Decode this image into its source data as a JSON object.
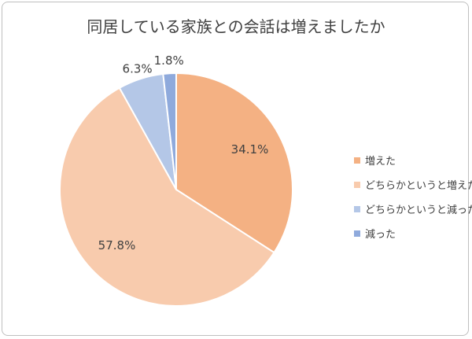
{
  "chart_data": {
    "type": "pie",
    "title": "同居している家族との会話は増えましたか",
    "categories": [
      "増えた",
      "どちらかというと増えた",
      "どちらかというと減った",
      "減った"
    ],
    "values": [
      34.1,
      57.8,
      6.3,
      1.8
    ],
    "value_labels": [
      "34.1%",
      "57.8%",
      "6.3%",
      "1.8%"
    ],
    "colors": [
      "#f4b183",
      "#f8cbad",
      "#b4c7e7",
      "#8faadc"
    ],
    "start_angle_deg": 0,
    "direction": "clockwise",
    "legend_position": "right"
  }
}
